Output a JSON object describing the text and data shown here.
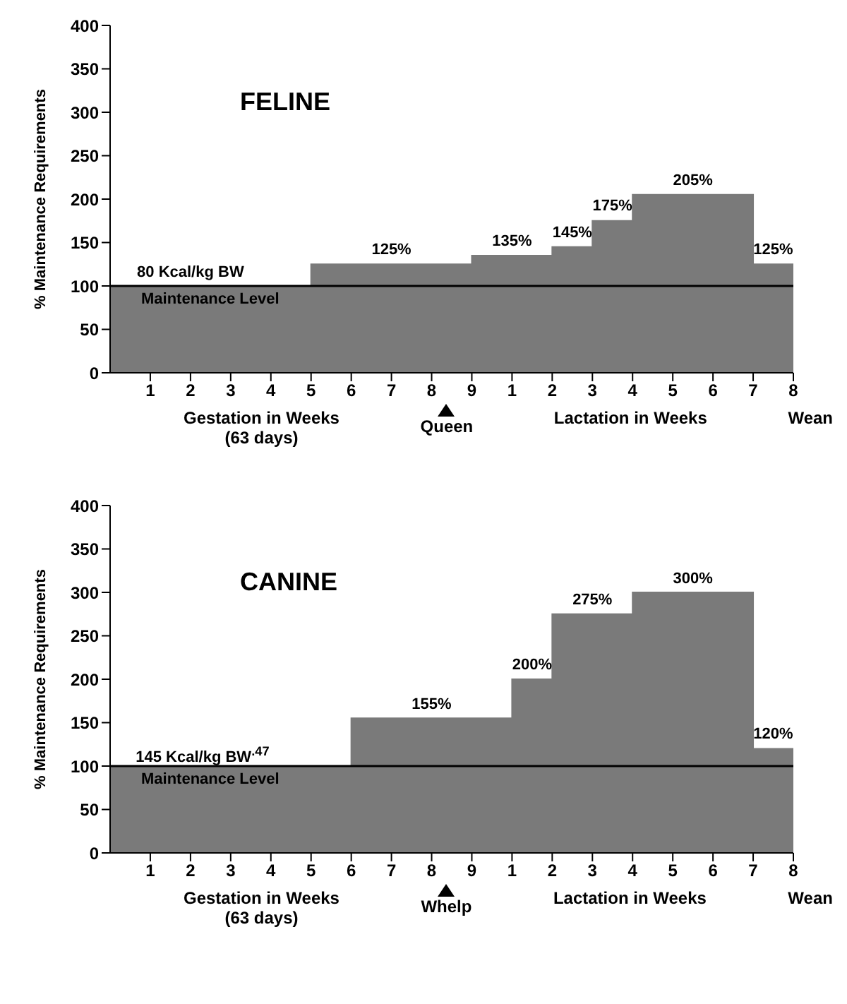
{
  "chart_data": [
    {
      "type": "area",
      "title": "FELINE",
      "ylabel": "% Maintenance Requirements",
      "x": [
        0,
        5,
        5,
        9,
        9,
        11,
        11,
        12,
        12,
        13,
        13,
        16,
        16,
        17
      ],
      "series": [
        {
          "color": "#7a7a7a",
          "values": [
            100,
            100,
            125,
            125,
            135,
            135,
            145,
            145,
            175,
            175,
            205,
            205,
            125,
            125
          ]
        }
      ],
      "xlim": [
        0,
        17
      ],
      "ylim": [
        0,
        400
      ],
      "xticks": [
        1,
        2,
        3,
        4,
        5,
        6,
        7,
        8,
        9
      ],
      "x2lim": [
        -9,
        8
      ],
      "x2ticks": [
        1,
        2,
        3,
        4,
        5,
        6,
        7,
        8
      ],
      "yticks": [
        0,
        50,
        100,
        150,
        200,
        250,
        300,
        350,
        400
      ],
      "ref_lines": [
        {
          "axis": "y",
          "value": 100,
          "label": "Maintenance Level",
          "color": "#000000"
        }
      ],
      "annotations": [
        {
          "text": "80 Kcal/kg BW",
          "x": 2,
          "y": 100
        },
        {
          "text": "125%",
          "x": 7,
          "y": 125
        },
        {
          "text": "135%",
          "x": 10,
          "y": 135
        },
        {
          "text": "145%",
          "x": 11.5,
          "y": 145
        },
        {
          "text": "175%",
          "x": 12.5,
          "y": 175
        },
        {
          "text": "205%",
          "x": 14.5,
          "y": 205
        },
        {
          "text": "125%",
          "x": 16.5,
          "y": 125
        },
        "Gestation in Weeks\n(63 days)",
        "Queen",
        "Lactation in Weeks",
        "Wean"
      ]
    },
    {
      "type": "area",
      "title": "CANINE",
      "ylabel": "% Maintenance Requirements",
      "x": [
        0,
        6,
        6,
        10,
        10,
        11,
        11,
        13,
        13,
        16,
        16,
        17
      ],
      "series": [
        {
          "color": "#7a7a7a",
          "values": [
            100,
            100,
            155,
            155,
            200,
            200,
            275,
            275,
            300,
            300,
            120,
            120
          ]
        }
      ],
      "xlim": [
        0,
        17
      ],
      "ylim": [
        0,
        400
      ],
      "xticks": [
        1,
        2,
        3,
        4,
        5,
        6,
        7,
        8,
        9
      ],
      "x2lim": [
        -9,
        8
      ],
      "x2ticks": [
        1,
        2,
        3,
        4,
        5,
        6,
        7,
        8
      ],
      "yticks": [
        0,
        50,
        100,
        150,
        200,
        250,
        300,
        350,
        400
      ],
      "ref_lines": [
        {
          "axis": "y",
          "value": 100,
          "label": "Maintenance Level",
          "color": "#000000"
        }
      ],
      "annotations": [
        {
          "text": "145 Kcal/kg BW$^{.47}$",
          "x": 2.3,
          "y": 100
        },
        {
          "text": "155%",
          "x": 8,
          "y": 155
        },
        {
          "text": "200%",
          "x": 10.5,
          "y": 200
        },
        {
          "text": "275%",
          "x": 12,
          "y": 275
        },
        {
          "text": "300%",
          "x": 14.5,
          "y": 300
        },
        {
          "text": "120%",
          "x": 16.5,
          "y": 120
        },
        "Gestation in Weeks\n(63 days)",
        "Whelp",
        "Lactation in Weeks",
        "Wean"
      ]
    }
  ]
}
